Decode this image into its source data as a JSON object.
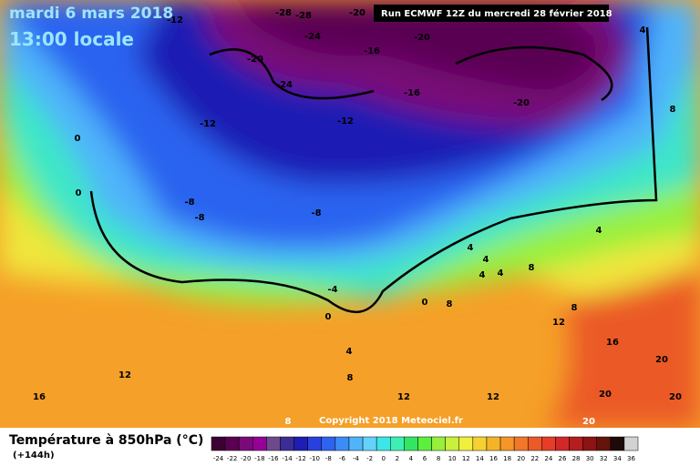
{
  "header": {
    "date": "mardi 6 mars 2018",
    "time": "13:00 locale",
    "run": "Run ECMWF 12Z du mercredi 28 février 2018"
  },
  "footer": {
    "title": "Température à 850hPa (°C)",
    "lead": "(+144h)",
    "copyright": "Copyright 2018 Meteociel.fr"
  },
  "colorbar": {
    "ticks": [
      -24,
      -22,
      -20,
      -18,
      -16,
      -14,
      -12,
      -10,
      -8,
      -6,
      -4,
      -2,
      0,
      2,
      4,
      6,
      8,
      10,
      12,
      14,
      16,
      18,
      20,
      22,
      24,
      26,
      28,
      30,
      32,
      34,
      36
    ],
    "colors": [
      "#3c0032",
      "#5a0052",
      "#7a0a7a",
      "#960096",
      "#6e4a8c",
      "#3c2c96",
      "#1e1eb4",
      "#2840dc",
      "#2c64f0",
      "#3c8cf8",
      "#50b4fa",
      "#64d2fa",
      "#3ce6e6",
      "#3cf0b4",
      "#32e664",
      "#5af03c",
      "#96f03c",
      "#c8f03c",
      "#f0f03c",
      "#f5d232",
      "#f5b428",
      "#f59628",
      "#f07828",
      "#eb5a28",
      "#e63c28",
      "#d22828",
      "#b41e1e",
      "#8c1414",
      "#64140a",
      "#1e0a0a",
      "#d2d2d2"
    ]
  },
  "map": {
    "labels": [
      "-12",
      "-28",
      "-28",
      "-20",
      "-24",
      "-20",
      "-16",
      "-20",
      "-24",
      "-16",
      "-20",
      "-12",
      "-12",
      "0",
      "0",
      "-8",
      "-8",
      "-8",
      "4",
      "4",
      "4",
      "8",
      "4",
      "4",
      "-4",
      "0",
      "0",
      "8",
      "12",
      "8",
      "16",
      "4",
      "8",
      "12",
      "16",
      "12",
      "12",
      "20",
      "20",
      "20",
      "20",
      "8",
      "8",
      "4"
    ]
  }
}
